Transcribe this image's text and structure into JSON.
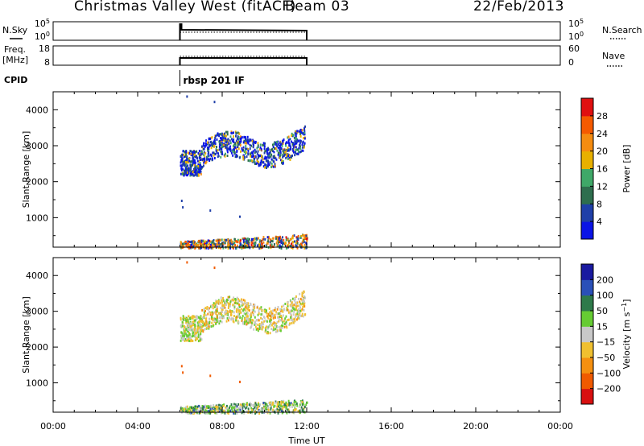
{
  "header": {
    "station": "Christmas Valley West (fitACF)",
    "beam": "Beam 03",
    "date": "22/Feb/2013"
  },
  "nsky_panel": {
    "left_label": "N.Sky",
    "right_label": "N.Search",
    "left_ticks": [
      "10^5",
      "10^0"
    ],
    "right_ticks": [
      "10^5",
      "10^0"
    ]
  },
  "freq_panel": {
    "left_label_top": "Freq.",
    "left_label_unit": "[MHz]",
    "right_label": "Nave",
    "left_ticks": [
      "18",
      "8"
    ],
    "right_ticks": [
      "60",
      "0"
    ]
  },
  "cpid": {
    "label": "CPID",
    "program": "rbsp 201 IF"
  },
  "colors": {
    "power_scale": [
      "#0a14e6",
      "#1f3fa8",
      "#2e6e4e",
      "#3fa868",
      "#e8b000",
      "#f58c10",
      "#f55a00",
      "#e01010"
    ],
    "velocity_scale": [
      "#d81010",
      "#f05a00",
      "#f59010",
      "#f0c030",
      "#c8c8c8",
      "#66cc33",
      "#2e7a4a",
      "#2a50b8",
      "#1a1aa0"
    ]
  },
  "chart_data": [
    {
      "type": "heatmap",
      "title": "Power",
      "ylabel": "Slant Range [km]",
      "xlabel": "",
      "ylim": [
        180,
        4500
      ],
      "yticks": [
        "1000",
        "2000",
        "3000",
        "4000"
      ],
      "x_ticks": [
        "00:00",
        "04:00",
        "08:00",
        "12:00",
        "16:00",
        "20:00",
        "00:00"
      ],
      "data_time_range_hours": [
        6.0,
        12.0
      ],
      "colorbar": {
        "label": "Power [dB]",
        "ticks": [
          "4",
          "8",
          "12",
          "16",
          "20",
          "24",
          "28"
        ],
        "range": [
          0,
          32
        ]
      },
      "echo_regions": [
        {
          "t": [
            6.0,
            7.0
          ],
          "range_km": [
            2200,
            2900
          ],
          "value": 6
        },
        {
          "t": [
            7.0,
            11.9
          ],
          "range_km": [
            2600,
            3600
          ],
          "value": 7
        },
        {
          "t": [
            6.0,
            12.0
          ],
          "range_km": [
            180,
            600
          ],
          "value": 12
        }
      ]
    },
    {
      "type": "heatmap",
      "title": "Velocity",
      "ylabel": "Slant Range [km]",
      "xlabel": "Time UT",
      "ylim": [
        180,
        4500
      ],
      "yticks": [
        "1000",
        "2000",
        "3000",
        "4000"
      ],
      "x_ticks": [
        "00:00",
        "04:00",
        "08:00",
        "12:00",
        "16:00",
        "20:00",
        "00:00"
      ],
      "data_time_range_hours": [
        6.0,
        12.0
      ],
      "colorbar": {
        "label": "Velocity [m s^-1]",
        "ticks": [
          "-200",
          "-100",
          "-50",
          "-15",
          "15",
          "50",
          "100",
          "200"
        ]
      },
      "echo_regions": [
        {
          "t": [
            6.0,
            7.0
          ],
          "range_km": [
            2200,
            2900
          ],
          "value": 0
        },
        {
          "t": [
            7.0,
            11.9
          ],
          "range_km": [
            2600,
            3600
          ],
          "value": -20
        },
        {
          "t": [
            6.0,
            12.0
          ],
          "range_km": [
            180,
            600
          ],
          "value": 40
        }
      ]
    }
  ]
}
